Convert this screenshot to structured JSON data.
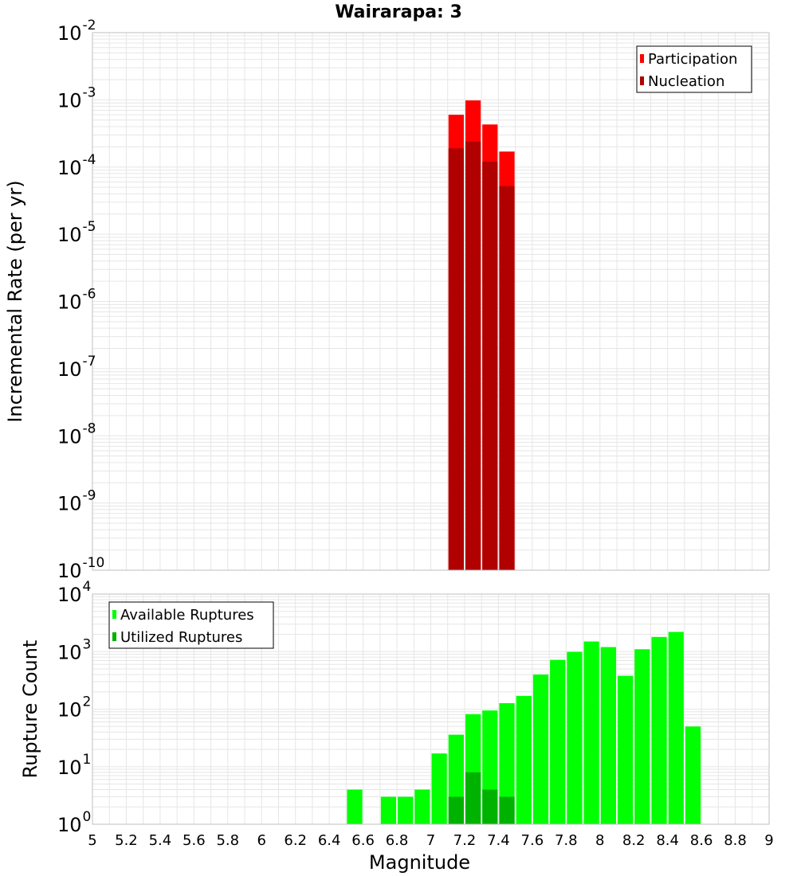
{
  "title": "Wairarapa: 3",
  "colors": {
    "participation": "#ff0000",
    "nucleation": "#b00000",
    "available": "#00ff00",
    "utilized": "#00b200",
    "grid": "#e6e6e6",
    "frame": "#bfbfbf"
  },
  "chart_data": [
    {
      "type": "bar",
      "subplot": "top",
      "ylabel": "Incremental Rate (per yr)",
      "yscale": "log",
      "ylim": [
        1e-10,
        0.01
      ],
      "ytick_exponents": [
        "-10",
        "-9",
        "-8",
        "-7",
        "-6",
        "-5",
        "-4",
        "-3",
        "-2"
      ],
      "grid": true,
      "legend_position": "top-right",
      "bar_width": 0.1,
      "series": [
        {
          "name": "Participation",
          "x": [
            7.15,
            7.25,
            7.35,
            7.45
          ],
          "values": [
            0.0006,
            0.00098,
            0.00043,
            0.00017
          ]
        },
        {
          "name": "Nucleation",
          "x": [
            7.15,
            7.25,
            7.35,
            7.45
          ],
          "values": [
            0.00019,
            0.00024,
            0.00012,
            5.2e-05
          ]
        }
      ]
    },
    {
      "type": "bar",
      "subplot": "bottom",
      "xlabel": "Magnitude",
      "ylabel": "Rupture Count",
      "yscale": "log",
      "ylim": [
        1,
        10000
      ],
      "ytick_exponents": [
        "0",
        "1",
        "2",
        "3",
        "4"
      ],
      "xlim": [
        5,
        9
      ],
      "xticks": [
        "5",
        "5.2",
        "5.4",
        "5.6",
        "5.8",
        "6",
        "6.2",
        "6.4",
        "6.6",
        "6.8",
        "7",
        "7.2",
        "7.4",
        "7.6",
        "7.8",
        "8",
        "8.2",
        "8.4",
        "8.6",
        "8.8",
        "9"
      ],
      "grid": true,
      "legend_position": "top-left",
      "bar_width": 0.1,
      "series": [
        {
          "name": "Available Ruptures",
          "x": [
            6.55,
            6.75,
            6.85,
            6.95,
            7.05,
            7.15,
            7.25,
            7.35,
            7.45,
            7.55,
            7.65,
            7.75,
            7.85,
            7.95,
            8.05,
            8.15,
            8.25,
            8.35,
            8.45,
            8.55
          ],
          "values": [
            4,
            3,
            3,
            4,
            17,
            36,
            82,
            95,
            127,
            170,
            400,
            720,
            990,
            1500,
            1200,
            380,
            1100,
            1800,
            2200,
            50
          ]
        },
        {
          "name": "Utilized Ruptures",
          "x": [
            7.15,
            7.25,
            7.35,
            7.45
          ],
          "values": [
            3,
            8,
            4,
            3
          ]
        }
      ]
    }
  ]
}
